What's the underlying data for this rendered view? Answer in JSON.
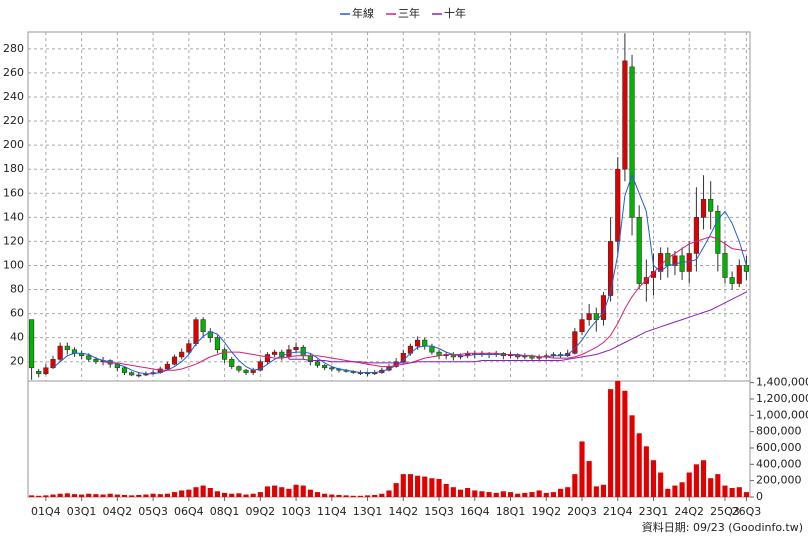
{
  "chart_data": {
    "type": "candlestick",
    "categories": [
      null,
      null,
      "01Q4",
      null,
      null,
      null,
      null,
      "03Q1",
      null,
      null,
      null,
      null,
      "04Q2",
      null,
      null,
      null,
      null,
      "05Q3",
      null,
      null,
      null,
      null,
      "06Q4",
      null,
      null,
      null,
      null,
      "08Q1",
      null,
      null,
      null,
      null,
      "09Q2",
      null,
      null,
      null,
      null,
      "10Q3",
      null,
      null,
      null,
      null,
      "11Q4",
      null,
      null,
      null,
      null,
      "13Q1",
      null,
      null,
      null,
      null,
      "14Q2",
      null,
      null,
      null,
      null,
      "15Q3",
      null,
      null,
      null,
      null,
      "16Q4",
      null,
      null,
      null,
      null,
      "18Q1",
      null,
      null,
      null,
      null,
      "19Q2",
      null,
      null,
      null,
      null,
      "20Q3",
      null,
      null,
      null,
      null,
      "21Q4",
      null,
      null,
      null,
      null,
      "23Q1",
      null,
      null,
      null,
      null,
      "24Q2",
      null,
      null,
      null,
      null,
      "25Q3",
      null,
      null,
      "26Q3"
    ],
    "open": [
      55,
      12,
      10,
      15,
      22,
      33,
      30,
      27,
      25,
      22,
      20,
      21,
      18,
      15,
      11,
      9,
      9,
      10,
      11,
      14,
      18,
      24,
      28,
      35,
      55,
      45,
      40,
      30,
      22,
      16,
      13,
      11,
      13,
      20,
      26,
      28,
      24,
      30,
      32,
      25,
      20,
      17,
      15,
      14,
      13,
      12,
      11,
      11,
      10,
      11,
      13,
      16,
      20,
      27,
      33,
      38,
      33,
      28,
      25,
      26,
      24,
      25,
      27,
      26,
      27,
      26,
      27,
      25,
      26,
      24,
      25,
      23,
      24,
      25,
      26,
      25,
      27,
      45,
      55,
      60,
      55,
      75,
      120,
      180,
      265,
      140,
      85,
      90,
      95,
      110,
      100,
      108,
      95,
      110,
      140,
      155,
      145,
      110,
      90,
      85,
      100
    ],
    "high": [
      55,
      14,
      18,
      25,
      36,
      36,
      32,
      29,
      27,
      24,
      24,
      22,
      19,
      16,
      12,
      11,
      12,
      13,
      16,
      20,
      26,
      31,
      38,
      57,
      57,
      48,
      42,
      32,
      24,
      17,
      14,
      15,
      22,
      28,
      30,
      30,
      34,
      36,
      34,
      27,
      22,
      18,
      16,
      15,
      14,
      13,
      13,
      12,
      13,
      15,
      18,
      23,
      30,
      35,
      41,
      40,
      35,
      30,
      28,
      28,
      27,
      29,
      29,
      29,
      28,
      29,
      28,
      28,
      27,
      27,
      26,
      26,
      27,
      28,
      28,
      30,
      48,
      60,
      68,
      65,
      78,
      140,
      190,
      293,
      275,
      150,
      105,
      110,
      115,
      115,
      112,
      115,
      120,
      165,
      175,
      170,
      150,
      120,
      95,
      105,
      108
    ],
    "low": [
      5,
      7,
      9,
      14,
      20,
      26,
      24,
      22,
      20,
      18,
      17,
      15,
      12,
      9,
      8,
      7,
      8,
      9,
      10,
      13,
      17,
      22,
      26,
      33,
      40,
      36,
      27,
      19,
      14,
      11,
      9,
      9,
      12,
      18,
      24,
      21,
      22,
      27,
      22,
      17,
      15,
      13,
      12,
      11,
      11,
      10,
      9,
      8,
      9,
      10,
      12,
      15,
      19,
      25,
      30,
      30,
      26,
      22,
      22,
      21,
      22,
      23,
      23,
      24,
      23,
      24,
      22,
      23,
      22,
      22,
      21,
      21,
      22,
      23,
      23,
      24,
      26,
      42,
      50,
      45,
      50,
      70,
      110,
      170,
      125,
      80,
      70,
      75,
      88,
      90,
      92,
      88,
      85,
      95,
      130,
      130,
      95,
      85,
      80,
      82,
      88
    ],
    "close": [
      15,
      10,
      15,
      22,
      33,
      30,
      27,
      25,
      22,
      20,
      21,
      18,
      15,
      11,
      9,
      9,
      10,
      11,
      14,
      18,
      24,
      28,
      35,
      55,
      45,
      40,
      30,
      22,
      16,
      13,
      11,
      13,
      20,
      26,
      28,
      24,
      30,
      32,
      25,
      20,
      17,
      15,
      14,
      13,
      12,
      11,
      11,
      10,
      11,
      13,
      16,
      20,
      27,
      33,
      38,
      33,
      28,
      25,
      26,
      24,
      25,
      27,
      26,
      27,
      26,
      27,
      25,
      26,
      24,
      25,
      23,
      24,
      25,
      26,
      25,
      27,
      45,
      55,
      60,
      55,
      75,
      120,
      180,
      270,
      140,
      85,
      90,
      95,
      110,
      100,
      108,
      95,
      110,
      140,
      155,
      145,
      110,
      90,
      85,
      100,
      95
    ],
    "up_color": "#e00000",
    "down_color": "#00b400",
    "series": [
      {
        "name": "年線",
        "color": "#1f5fd8",
        "values": [
          null,
          null,
          null,
          15,
          20,
          25,
          27,
          27,
          26,
          23,
          21,
          20,
          18,
          16,
          13,
          11,
          10,
          10,
          11,
          13,
          16,
          20,
          26,
          35,
          41,
          45,
          43,
          36,
          28,
          21,
          16,
          13,
          14,
          18,
          22,
          25,
          27,
          28,
          28,
          27,
          23,
          19,
          16,
          14,
          13,
          12,
          11,
          11,
          11,
          12,
          14,
          17,
          21,
          27,
          32,
          33,
          33,
          31,
          28,
          26,
          25,
          25,
          26,
          26,
          26,
          26,
          26,
          26,
          25,
          25,
          25,
          24,
          24,
          25,
          25,
          26,
          31,
          38,
          47,
          54,
          61,
          78,
          109,
          158,
          175,
          160,
          145,
          100,
          95,
          100,
          101,
          103,
          103,
          105,
          115,
          126,
          138,
          145,
          135,
          120,
          100
        ]
      },
      {
        "name": "三年",
        "color": "#d8207a",
        "values": [
          null,
          null,
          null,
          null,
          null,
          null,
          null,
          null,
          null,
          null,
          20,
          19,
          19,
          18,
          17,
          16,
          15,
          14,
          13,
          13,
          13,
          14,
          16,
          18,
          21,
          24,
          26,
          28,
          28,
          28,
          27,
          26,
          25,
          24,
          23,
          23,
          24,
          25,
          25,
          25,
          25,
          24,
          23,
          22,
          21,
          20,
          19,
          18,
          17,
          16,
          16,
          17,
          18,
          19,
          21,
          23,
          24,
          25,
          26,
          26,
          26,
          27,
          27,
          27,
          27,
          27,
          26,
          26,
          26,
          25,
          25,
          24,
          24,
          23,
          23,
          23,
          24,
          26,
          29,
          32,
          36,
          42,
          52,
          64,
          74,
          82,
          88,
          94,
          100,
          106,
          110,
          114,
          118,
          120,
          122,
          124,
          122,
          118,
          114,
          113,
          112
        ]
      },
      {
        "name": "十年",
        "color": "#8a22b8",
        "values": [
          null,
          null,
          null,
          null,
          null,
          null,
          null,
          null,
          null,
          null,
          null,
          null,
          null,
          null,
          null,
          null,
          null,
          null,
          null,
          null,
          null,
          null,
          null,
          null,
          null,
          null,
          null,
          null,
          null,
          null,
          null,
          null,
          null,
          null,
          null,
          null,
          22,
          22,
          22,
          21,
          21,
          21,
          20,
          20,
          20,
          20,
          20,
          19,
          19,
          19,
          19,
          19,
          19,
          19,
          20,
          20,
          20,
          20,
          20,
          20,
          20,
          20,
          20,
          21,
          21,
          21,
          21,
          21,
          21,
          21,
          21,
          21,
          21,
          21,
          21,
          22,
          23,
          24,
          25,
          26,
          28,
          30,
          33,
          36,
          39,
          42,
          45,
          47,
          49,
          51,
          53,
          55,
          57,
          59,
          61,
          63,
          66,
          69,
          72,
          75,
          78
        ]
      }
    ],
    "ylim": [
      4,
      294
    ],
    "yticks": [
      20,
      40,
      60,
      80,
      100,
      120,
      140,
      160,
      180,
      200,
      220,
      240,
      260,
      280
    ],
    "grid": true,
    "legend": "top",
    "volume": {
      "color": "#e00000",
      "values": [
        20000,
        15000,
        20000,
        30000,
        40000,
        45000,
        35000,
        30000,
        40000,
        35000,
        30000,
        40000,
        30000,
        25000,
        20000,
        25000,
        30000,
        40000,
        35000,
        40000,
        60000,
        80000,
        90000,
        120000,
        140000,
        110000,
        70000,
        50000,
        40000,
        45000,
        30000,
        40000,
        60000,
        130000,
        140000,
        120000,
        100000,
        150000,
        140000,
        90000,
        60000,
        40000,
        30000,
        25000,
        20000,
        15000,
        15000,
        20000,
        25000,
        40000,
        80000,
        170000,
        280000,
        280000,
        260000,
        250000,
        230000,
        220000,
        160000,
        120000,
        90000,
        110000,
        80000,
        70000,
        60000,
        50000,
        70000,
        60000,
        40000,
        50000,
        60000,
        80000,
        50000,
        60000,
        100000,
        120000,
        280000,
        680000,
        440000,
        130000,
        150000,
        1320000,
        1420000,
        1300000,
        1000000,
        780000,
        620000,
        450000,
        300000,
        100000,
        140000,
        180000,
        300000,
        400000,
        450000,
        230000,
        280000,
        140000,
        110000,
        120000,
        60000
      ],
      "ylim": [
        0,
        1420000
      ],
      "yticks": [
        0,
        {
          "value": 200000,
          "label": "200,000"
        },
        {
          "value": 400000,
          "label": "400,000"
        },
        {
          "value": 600000,
          "label": "600,000"
        },
        {
          "value": 800000,
          "label": "800,000"
        },
        {
          "value": 1000000,
          "label": "1,000,000"
        },
        {
          "value": 1200000,
          "label": "1,200,000"
        },
        {
          "value": 1400000,
          "label": "1,400,000"
        }
      ]
    },
    "source": "資料日期: 09/23 (Goodinfo.tw)"
  }
}
